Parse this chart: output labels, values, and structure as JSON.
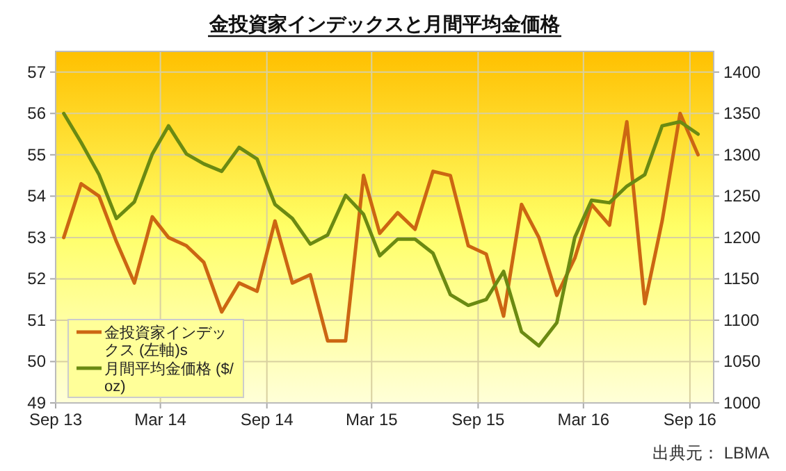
{
  "chart_data": {
    "type": "line",
    "title": "金投資家インデックスと月間平均金価格",
    "x": [
      "2013-09-15",
      "2013-10-15",
      "2013-11-15",
      "2013-12-15",
      "2014-01-15",
      "2014-02-15",
      "2014-03-15",
      "2014-04-15",
      "2014-05-15",
      "2014-06-15",
      "2014-07-15",
      "2014-08-15",
      "2014-09-15",
      "2014-10-15",
      "2014-11-15",
      "2014-12-15",
      "2015-01-15",
      "2015-02-15",
      "2015-03-15",
      "2015-04-15",
      "2015-05-15",
      "2015-06-15",
      "2015-07-15",
      "2015-08-15",
      "2015-09-15",
      "2015-10-15",
      "2015-11-15",
      "2015-12-15",
      "2016-01-15",
      "2016-02-15",
      "2016-03-15",
      "2016-04-15",
      "2016-05-15",
      "2016-06-15",
      "2016-07-15",
      "2016-08-15",
      "2016-09-15"
    ],
    "series": [
      {
        "name": "金投資家インデックス (左軸)s",
        "color": "#cc6612",
        "values": [
          53.0,
          54.3,
          54.0,
          52.9,
          51.9,
          53.5,
          53.0,
          52.8,
          52.4,
          51.2,
          51.9,
          51.7,
          53.4,
          51.9,
          52.1,
          50.5,
          50.5,
          54.5,
          53.1,
          53.6,
          53.2,
          54.6,
          54.5,
          52.8,
          52.6,
          51.1,
          53.8,
          53.0,
          51.6,
          52.5,
          53.8,
          53.3,
          55.8,
          51.4,
          53.4,
          56.0,
          55.0
        ]
      },
      {
        "name": "月間平均金価格 ($/oz)",
        "color": "#6b8a12",
        "axis": "y2",
        "values": [
          1350,
          1315,
          1276,
          1223,
          1243,
          1301,
          1335,
          1301,
          1289,
          1280,
          1309,
          1295,
          1240,
          1223,
          1192,
          1203,
          1251,
          1228,
          1178,
          1198,
          1198,
          1181,
          1131,
          1118,
          1125,
          1159,
          1086,
          1069,
          1097,
          1200,
          1245,
          1242,
          1262,
          1276,
          1335,
          1340,
          1325
        ]
      }
    ],
    "xlim": [
      "2013-09-01",
      "2016-10-12"
    ],
    "xticks": [
      {
        "value": "2013-09-01",
        "label": "Sep 13"
      },
      {
        "value": "2014-03-01",
        "label": "Mar 14"
      },
      {
        "value": "2014-09-01",
        "label": "Sep 14"
      },
      {
        "value": "2015-03-01",
        "label": "Mar 15"
      },
      {
        "value": "2015-09-01",
        "label": "Sep 15"
      },
      {
        "value": "2016-03-01",
        "label": "Mar 16"
      },
      {
        "value": "2016-09-01",
        "label": "Sep 16"
      }
    ],
    "ylim": [
      49,
      57.5
    ],
    "yticks": [
      49,
      50,
      51,
      52,
      53,
      54,
      55,
      56,
      57
    ],
    "y2lim": [
      1000,
      1425
    ],
    "y2ticks": [
      1000,
      1050,
      1100,
      1150,
      1200,
      1250,
      1300,
      1350,
      1400
    ],
    "grid": true,
    "legend": "bottom left",
    "marker": "none",
    "line_style": "solid",
    "annotations": [
      "出典元： LBMA"
    ]
  }
}
